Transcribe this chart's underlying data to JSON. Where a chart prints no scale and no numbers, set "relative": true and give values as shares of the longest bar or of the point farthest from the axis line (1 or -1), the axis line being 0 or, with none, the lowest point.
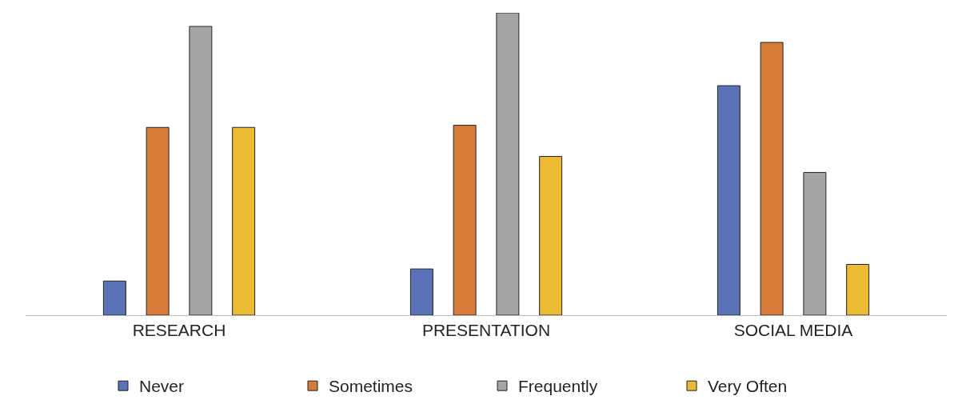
{
  "chart_data": {
    "type": "bar",
    "relative": true,
    "categories": [
      "RESEARCH",
      "PRESENTATION",
      "SOCIAL MEDIA"
    ],
    "series": [
      {
        "name": "Never",
        "color": "#5a72b8",
        "values": [
          0.113,
          0.153,
          0.759
        ]
      },
      {
        "name": "Sometimes",
        "color": "#d77b39",
        "values": [
          0.621,
          0.628,
          0.902
        ]
      },
      {
        "name": "Frequently",
        "color": "#a5a5a5",
        "values": [
          0.955,
          1.0,
          0.472
        ]
      },
      {
        "name": "Very Often",
        "color": "#ebbb33",
        "values": [
          0.621,
          0.525,
          0.168
        ]
      }
    ],
    "legend": "bottom"
  }
}
